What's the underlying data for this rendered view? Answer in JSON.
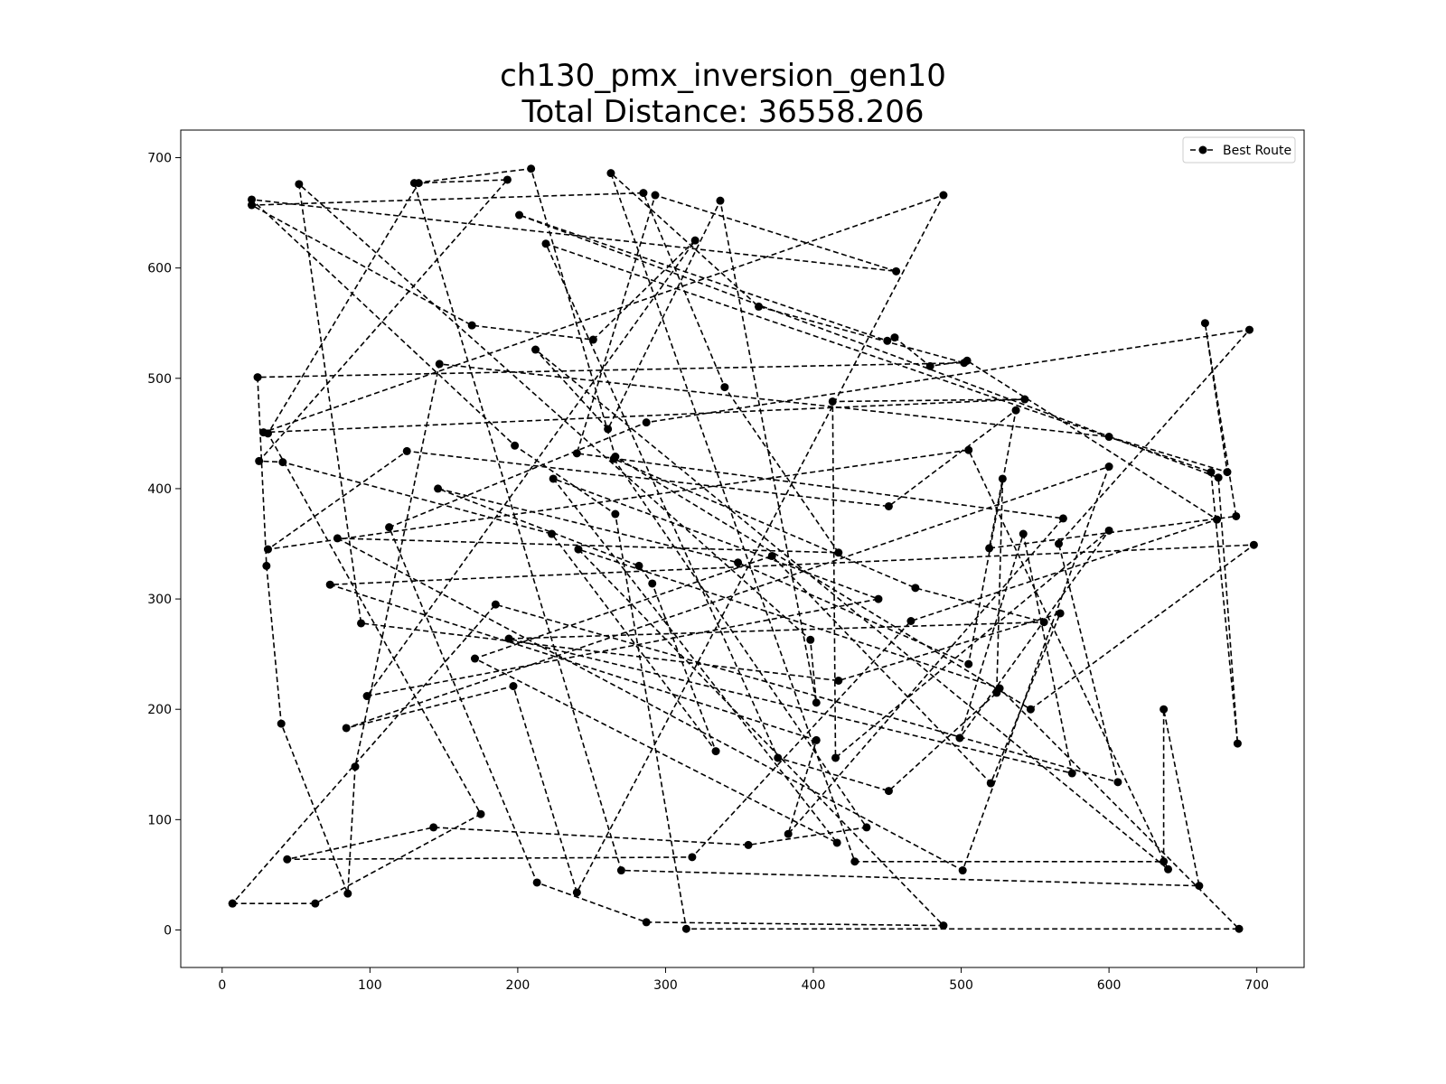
{
  "chart_data": {
    "type": "line",
    "title": "ch130_pmx_inversion_gen10",
    "subtitle": "Total Distance: 36558.206",
    "xlabel": "",
    "ylabel": "",
    "xlim": [
      -28,
      732
    ],
    "ylim": [
      -34,
      725
    ],
    "xticks": [
      0,
      100,
      200,
      300,
      400,
      500,
      600,
      700
    ],
    "yticks": [
      0,
      100,
      200,
      300,
      400,
      500,
      600,
      700
    ],
    "grid": false,
    "legend_position": "top-right",
    "line_color": "#000000",
    "line_style": "dashed",
    "marker": "circle",
    "series": [
      {
        "name": "Best Route",
        "points": [
          [
            7,
            24
          ],
          [
            63,
            24
          ],
          [
            175,
            105
          ],
          [
            31,
            450
          ],
          [
            133,
            677
          ],
          [
            193,
            680
          ],
          [
            25,
            425
          ],
          [
            41,
            424
          ],
          [
            223,
            359
          ],
          [
            334,
            162
          ],
          [
            291,
            314
          ],
          [
            282,
            330
          ],
          [
            146,
            400
          ],
          [
            349,
            333
          ],
          [
            505,
            241
          ],
          [
            537,
            471
          ],
          [
            451,
            384
          ],
          [
            125,
            434
          ],
          [
            31,
            345
          ],
          [
            505,
            435
          ],
          [
            640,
            55
          ],
          [
            212,
            526
          ],
          [
            261,
            454
          ],
          [
            337,
            661
          ],
          [
            402,
            206
          ],
          [
            398,
            263
          ],
          [
            52,
            676
          ],
          [
            94,
            278
          ],
          [
            417,
            226
          ],
          [
            567,
            287
          ],
          [
            520,
            133
          ],
          [
            372,
            339
          ],
          [
            171,
            246
          ],
          [
            416,
            79
          ],
          [
            224,
            409
          ],
          [
            444,
            300
          ],
          [
            98,
            212
          ],
          [
            320,
            625
          ],
          [
            251,
            535
          ],
          [
            169,
            548
          ],
          [
            20,
            657
          ],
          [
            285,
            668
          ],
          [
            340,
            492
          ],
          [
            417,
            342
          ],
          [
            78,
            355
          ],
          [
            501,
            54
          ],
          [
            600,
            420
          ],
          [
            84,
            183
          ],
          [
            197,
            221
          ],
          [
            240,
            34
          ],
          [
            488,
            666
          ],
          [
            28,
            451
          ],
          [
            543,
            481
          ],
          [
            413,
            479
          ],
          [
            415,
            156
          ],
          [
            600,
            362
          ],
          [
            499,
            174
          ],
          [
            542,
            359
          ],
          [
            575,
            142
          ],
          [
            194,
            264
          ],
          [
            556,
            279
          ],
          [
            469,
            310
          ],
          [
            265,
            427
          ],
          [
            436,
            93
          ],
          [
            356,
            77
          ],
          [
            143,
            93
          ],
          [
            44,
            64
          ],
          [
            318,
            66
          ],
          [
            466,
            280
          ],
          [
            673,
            372
          ],
          [
            504,
            516
          ],
          [
            479,
            511
          ],
          [
            455,
            537
          ],
          [
            450,
            534
          ],
          [
            201,
            648
          ],
          [
            674,
            410
          ],
          [
            687,
            169
          ],
          [
            669,
            415
          ],
          [
            219,
            622
          ],
          [
            376,
            156
          ],
          [
            451,
            126
          ],
          [
            524,
            215
          ],
          [
            528,
            409
          ],
          [
            519,
            346
          ],
          [
            686,
            375
          ],
          [
            665,
            550
          ],
          [
            680,
            415
          ],
          [
            600,
            447
          ],
          [
            147,
            513
          ],
          [
            90,
            148
          ],
          [
            85,
            33
          ],
          [
            40,
            187
          ],
          [
            30,
            330
          ],
          [
            24,
            501
          ],
          [
            502,
            514
          ],
          [
            363,
            565
          ],
          [
            263,
            686
          ],
          [
            428,
            62
          ],
          [
            637,
            62
          ],
          [
            637,
            200
          ],
          [
            661,
            40
          ],
          [
            270,
            54
          ],
          [
            130,
            677
          ],
          [
            209,
            690
          ],
          [
            266,
            429
          ],
          [
            547,
            200
          ],
          [
            698,
            349
          ],
          [
            73,
            313
          ],
          [
            402,
            172
          ],
          [
            383,
            87
          ],
          [
            569,
            373
          ],
          [
            240,
            432
          ],
          [
            293,
            666
          ],
          [
            456,
            597
          ],
          [
            20,
            662
          ],
          [
            198,
            439
          ],
          [
            266,
            377
          ],
          [
            314,
            1
          ],
          [
            688,
            1
          ],
          [
            526,
            219
          ],
          [
            241,
            345
          ],
          [
            488,
            4
          ],
          [
            287,
            7
          ],
          [
            213,
            43
          ],
          [
            113,
            365
          ],
          [
            287,
            460
          ],
          [
            695,
            544
          ],
          [
            566,
            350
          ],
          [
            606,
            134
          ],
          [
            185,
            295
          ],
          [
            7,
            24
          ]
        ]
      }
    ]
  }
}
